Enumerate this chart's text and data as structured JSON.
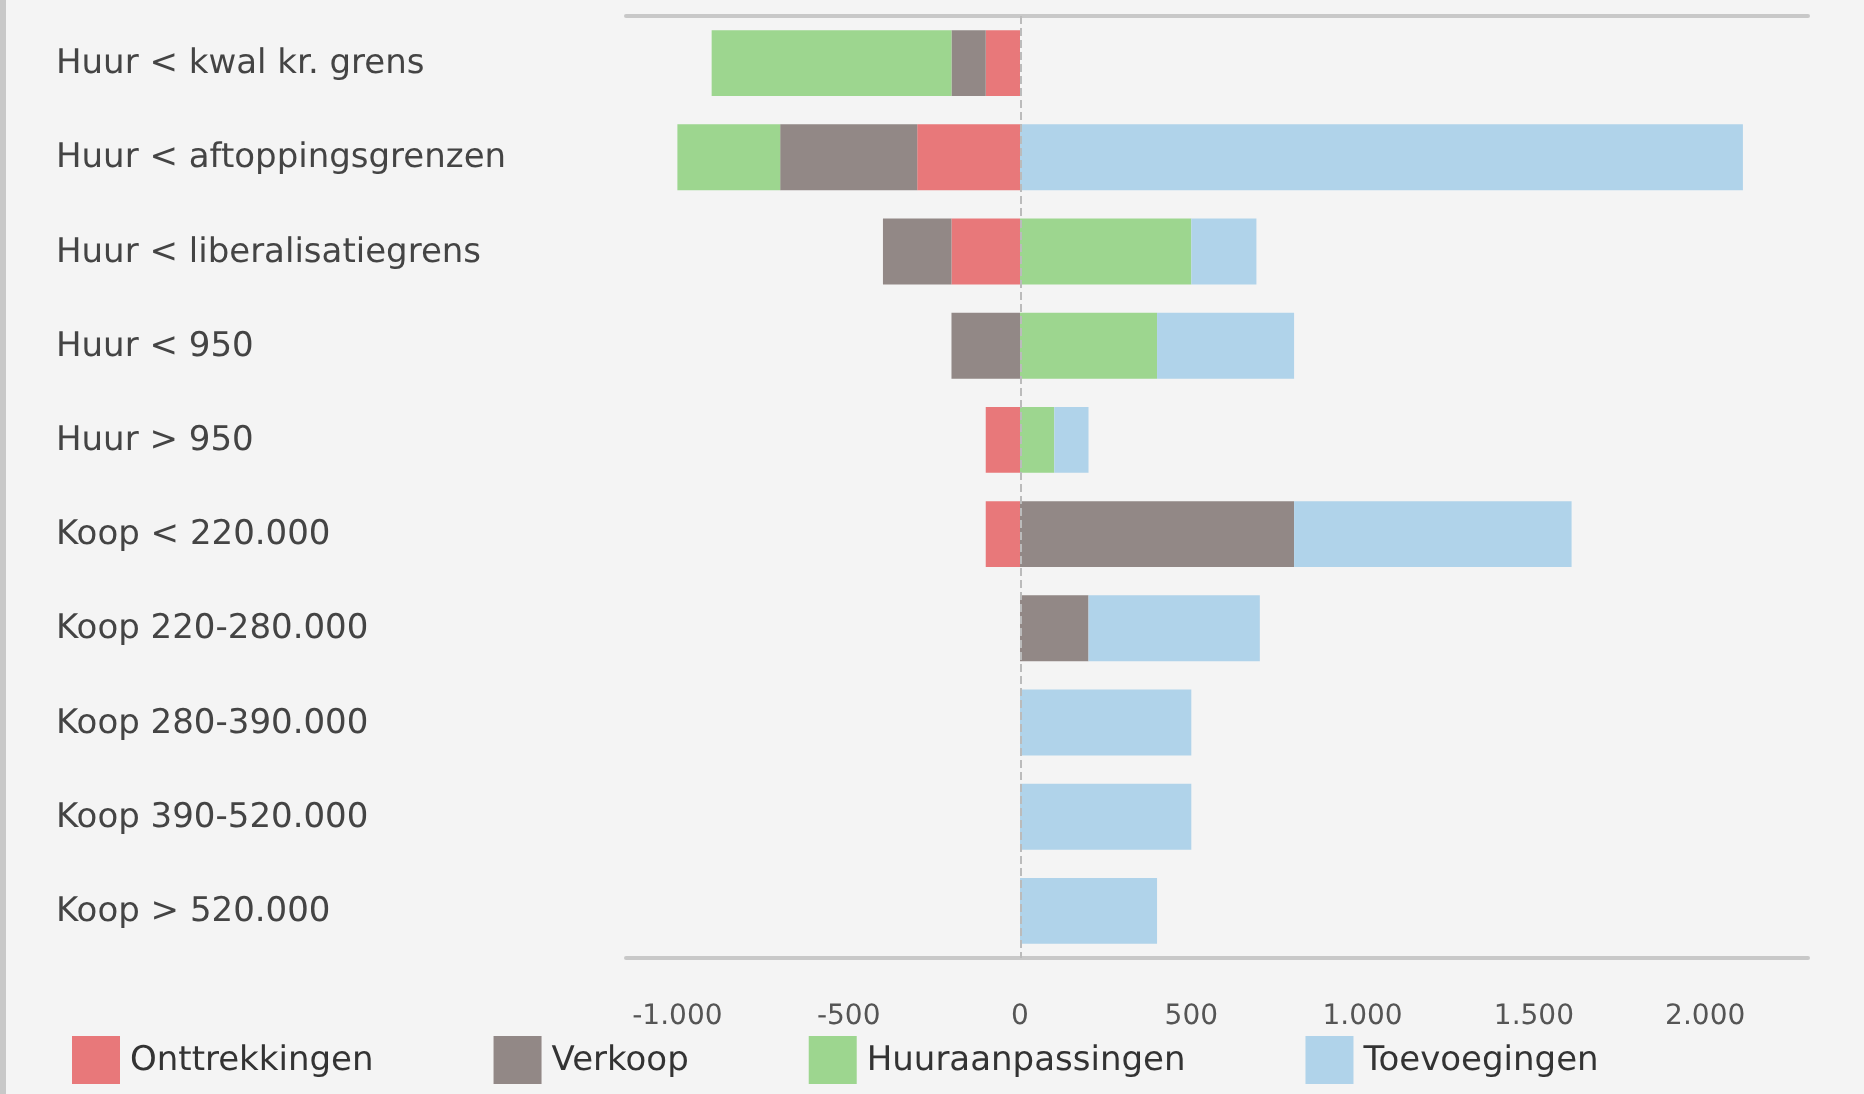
{
  "chart_data": {
    "type": "bar",
    "orientation": "horizontal",
    "stacked": true,
    "categories": [
      "Huur < kwal kr. grens",
      "Huur < aftoppingsgrenzen",
      "Huur < liberalisatiegrens",
      "Huur < 950",
      "Huur > 950",
      "Koop < 220.000",
      "Koop 220-280.000",
      "Koop 280-390.000",
      "Koop 390-520.000",
      "Koop > 520.000"
    ],
    "series": [
      {
        "name": "Onttrekkingen",
        "color": "#e8787a",
        "values": [
          -100,
          -300,
          -200,
          null,
          -100,
          -100,
          null,
          null,
          null,
          null
        ]
      },
      {
        "name": "Verkoop",
        "color": "#928886",
        "values": [
          -100,
          -400,
          -200,
          -200,
          null,
          800,
          200,
          null,
          null,
          null
        ]
      },
      {
        "name": "Huuraanpassingen",
        "color": "#9dd68f",
        "values": [
          -700,
          -300,
          500,
          400,
          100,
          null,
          null,
          null,
          null,
          null
        ]
      },
      {
        "name": "Toevoegingen",
        "color": "#b0d3ea",
        "values": [
          null,
          2110,
          190,
          400,
          100,
          810,
          500,
          500,
          500,
          400
        ]
      }
    ],
    "xlim": [
      -1150,
      2300
    ],
    "xticks": [
      {
        "value": -1000,
        "label": "-1.000"
      },
      {
        "value": -500,
        "label": "-500"
      },
      0,
      500,
      {
        "value": 1000,
        "label": "1.000"
      },
      {
        "value": 1500,
        "label": "1.500"
      },
      {
        "value": 2000,
        "label": "2.000"
      }
    ],
    "ref_lines": [
      {
        "axis": "x",
        "value": 0,
        "label": null,
        "color": "#bbbbbb",
        "line_style": "dashed"
      }
    ],
    "grid": false,
    "legend": "bottom"
  }
}
